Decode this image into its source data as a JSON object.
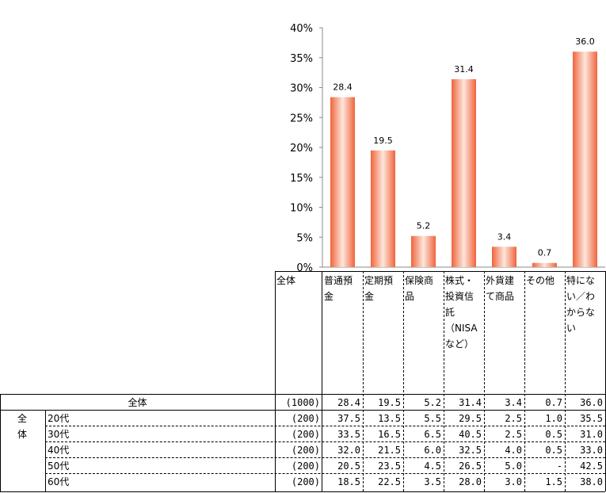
{
  "chart_data": {
    "type": "bar",
    "categories": [
      "普通預金",
      "定期預金",
      "保険商品",
      "株式・投資信託（NISAなど）",
      "外貨建て商品",
      "その他",
      "特にない／わからない"
    ],
    "values": [
      28.4,
      19.5,
      5.2,
      31.4,
      3.4,
      0.7,
      36.0
    ],
    "data_labels": [
      "28.4",
      "19.5",
      "5.2",
      "31.4",
      "3.4",
      "0.7",
      "36.0"
    ],
    "yticks": [
      "0%",
      "5%",
      "10%",
      "15%",
      "20%",
      "25%",
      "30%",
      "35%",
      "40%"
    ],
    "ylim": [
      0,
      40
    ],
    "bar_color": "#f0643c"
  },
  "table": {
    "header_first": "全体",
    "column_headers": [
      "普通預\n金",
      "定期預\n金",
      "保険商\n品",
      "株式・\n投資信\n託\n（NISA\nなど）",
      "外貨建\nて商品",
      "その他",
      "特にな\nい／わ\nからな\nい"
    ],
    "group_label": "全\n体",
    "rows": [
      {
        "label": "全体",
        "n": "(1000)",
        "values": [
          "28.4",
          "19.5",
          "5.2",
          "31.4",
          "3.4",
          "0.7",
          "36.0"
        ]
      },
      {
        "label": "20代",
        "n": "(200)",
        "values": [
          "37.5",
          "13.5",
          "5.5",
          "29.5",
          "2.5",
          "1.0",
          "35.5"
        ]
      },
      {
        "label": "30代",
        "n": "(200)",
        "values": [
          "33.5",
          "16.5",
          "6.5",
          "40.5",
          "2.5",
          "0.5",
          "31.0"
        ]
      },
      {
        "label": "40代",
        "n": "(200)",
        "values": [
          "32.0",
          "21.5",
          "6.0",
          "32.5",
          "4.0",
          "0.5",
          "33.0"
        ]
      },
      {
        "label": "50代",
        "n": "(200)",
        "values": [
          "20.5",
          "23.5",
          "4.5",
          "26.5",
          "5.0",
          "-",
          "42.5"
        ]
      },
      {
        "label": "60代",
        "n": "(200)",
        "values": [
          "18.5",
          "22.5",
          "3.5",
          "28.0",
          "3.0",
          "1.5",
          "38.0"
        ]
      }
    ]
  }
}
